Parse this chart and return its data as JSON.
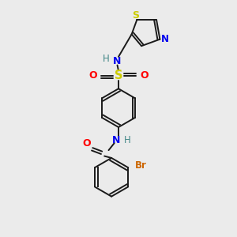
{
  "bg_color": "#ebebeb",
  "bond_color": "#1a1a1a",
  "colors": {
    "N": "#0000ee",
    "O": "#ff0000",
    "S_sulfonyl": "#cccc00",
    "S_thiazole": "#cccc00",
    "Br": "#cc6600",
    "N_thiazole": "#0000ee",
    "H": "#448888",
    "C": "#1a1a1a"
  },
  "font_size": 8.5,
  "bond_lw": 1.4
}
